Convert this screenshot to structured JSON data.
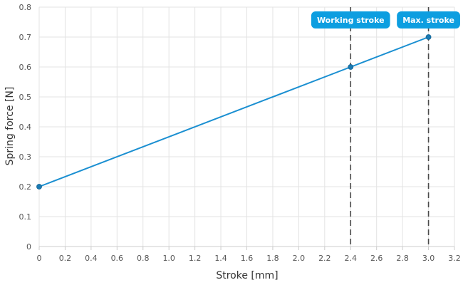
{
  "chart_data": {
    "type": "line",
    "xlabel": "Stroke [mm]",
    "ylabel": "Spring force [N]",
    "xlim": [
      0,
      3.2
    ],
    "ylim": [
      0,
      0.8
    ],
    "x_ticks": [
      "0",
      "0.2",
      "0.4",
      "0.6",
      "0.8",
      "1.0",
      "1.2",
      "1.4",
      "1.6",
      "1.8",
      "2.0",
      "2.2",
      "2.4",
      "2.6",
      "2.8",
      "3.0",
      "3.2"
    ],
    "y_ticks": [
      "0",
      "0.1",
      "0.2",
      "0.3",
      "0.4",
      "0.5",
      "0.6",
      "0.7",
      "0.8"
    ],
    "grid": true,
    "series": [
      {
        "x": [
          0,
          2.4,
          3.0
        ],
        "y": [
          0.2,
          0.6,
          0.7
        ],
        "color": "#1a8fd1"
      }
    ],
    "markers": [
      {
        "x": 2.4,
        "label": "Working stroke"
      },
      {
        "x": 3.0,
        "label": "Max. stroke"
      }
    ],
    "colors": {
      "line": "#1a8fd1",
      "point": "#1a7ab3",
      "label_bg": "#0d9ee0",
      "marker_line": "#4a4a4a",
      "grid": "#e3e3e3"
    }
  }
}
